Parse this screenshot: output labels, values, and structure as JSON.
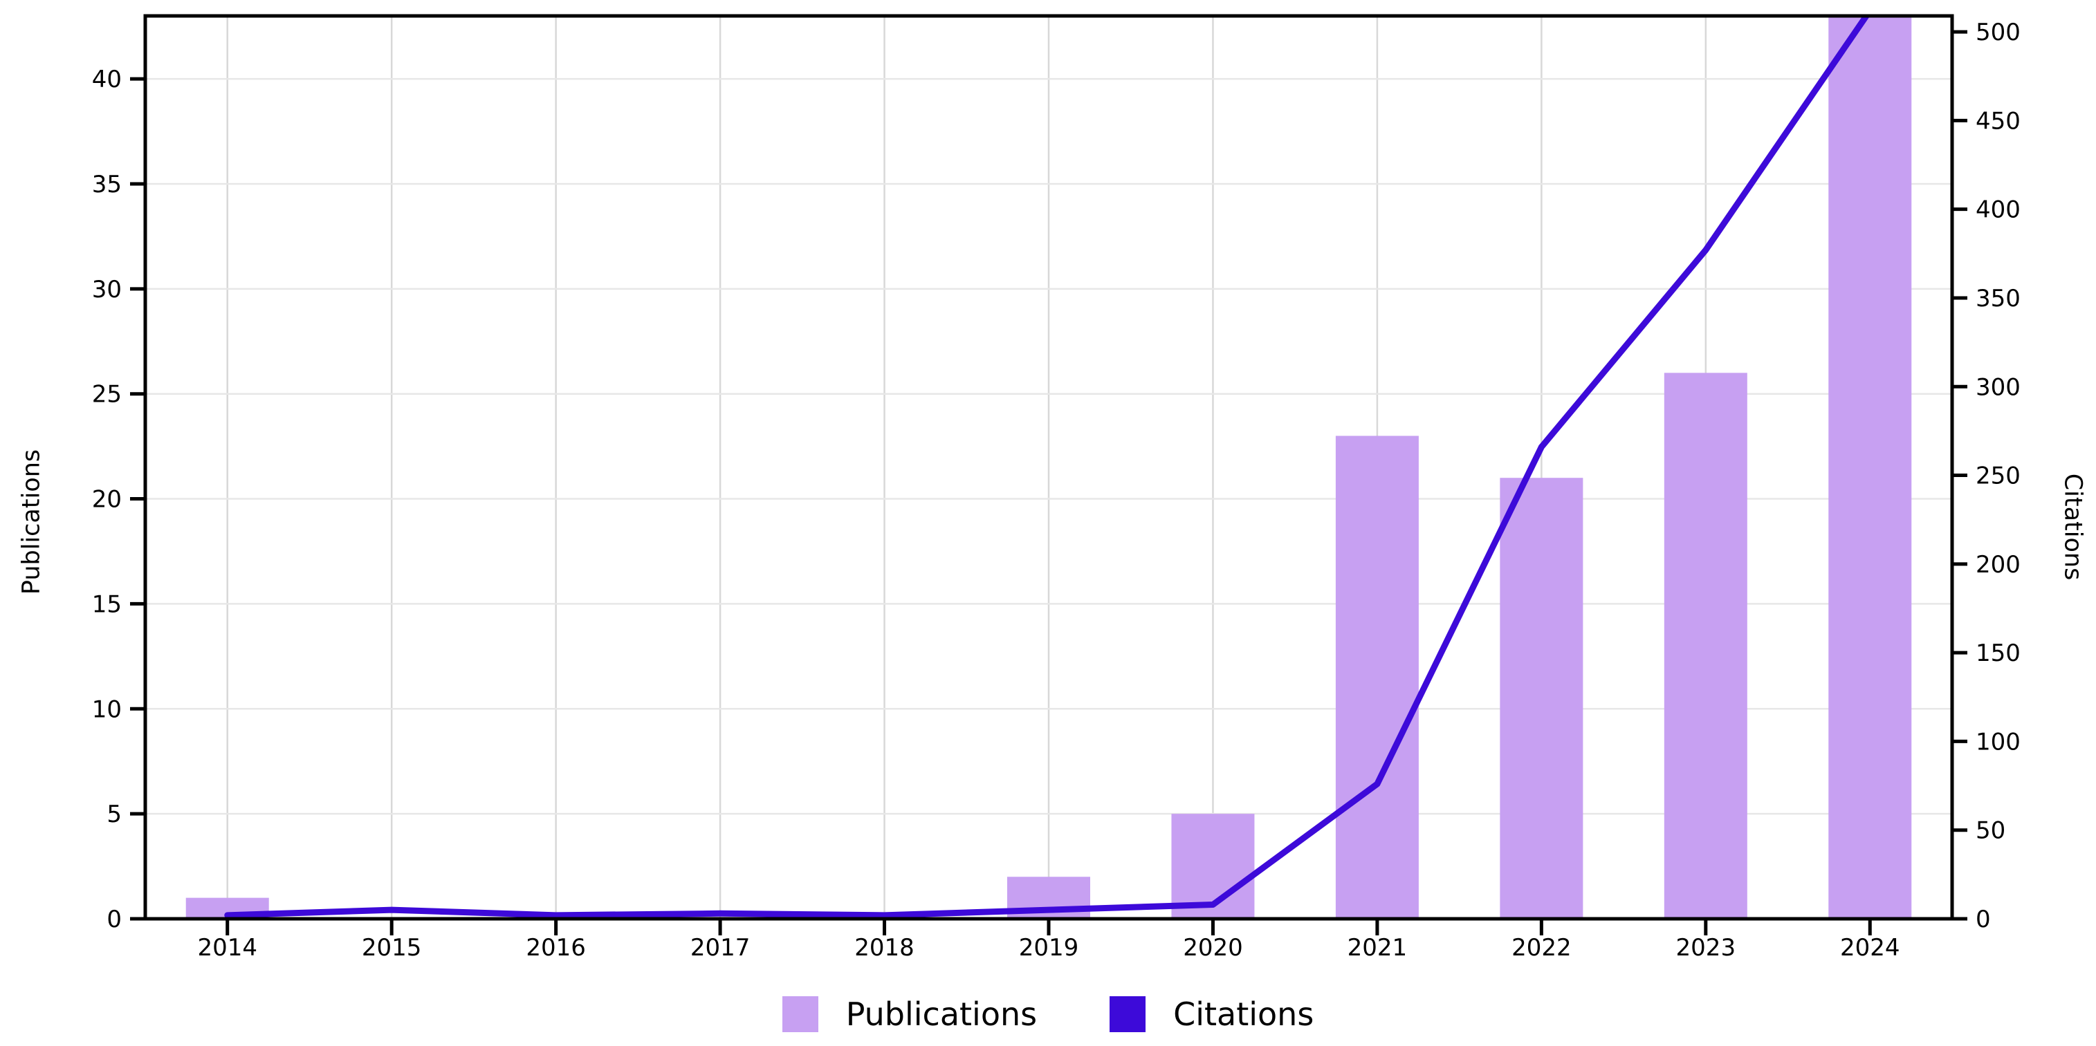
{
  "chart_data": {
    "type": "bar+line",
    "categories": [
      "2014",
      "2015",
      "2016",
      "2017",
      "2018",
      "2019",
      "2020",
      "2021",
      "2022",
      "2023",
      "2024"
    ],
    "series": [
      {
        "name": "Publications",
        "type": "bar",
        "axis": "left",
        "color": "#C7A0F2",
        "values": [
          1,
          0,
          0,
          0,
          0,
          2,
          5,
          23,
          21,
          26,
          43
        ]
      },
      {
        "name": "Citations",
        "type": "line",
        "axis": "right",
        "color": "#3D0AD9",
        "values": [
          2,
          5,
          2,
          3,
          2,
          5,
          8,
          76,
          266,
          377,
          512
        ]
      }
    ],
    "title": "",
    "xlabel": "",
    "left_axis": {
      "label": "Publications",
      "ticks": [
        0,
        5,
        10,
        15,
        20,
        25,
        30,
        35,
        40
      ],
      "range": [
        0,
        43
      ]
    },
    "right_axis": {
      "label": "Citations",
      "ticks": [
        0,
        50,
        100,
        150,
        200,
        250,
        300,
        350,
        400,
        450,
        500
      ],
      "range": [
        0,
        509
      ]
    },
    "grid": {
      "horizontal": true,
      "vertical": true
    },
    "legend": {
      "position": "bottom-center",
      "entries": [
        "Publications",
        "Citations"
      ]
    }
  },
  "colors": {
    "background": "#ffffff",
    "axis": "#000000",
    "text": "#000000",
    "grid_horizontal": "#e7e7e7",
    "grid_vertical": "#d8d8d8",
    "bar": "#C7A0F2",
    "line": "#3D0AD9"
  }
}
